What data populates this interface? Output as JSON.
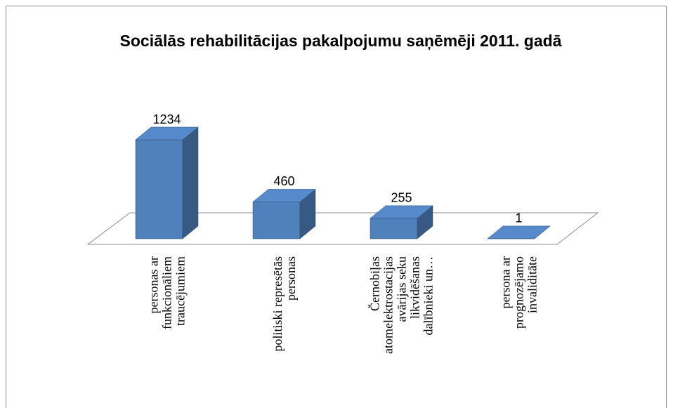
{
  "chart_data": {
    "type": "bar3d",
    "title": "Sociālās rehabilitācijas pakalpojumu saņēmēji 2011. gadā",
    "categories": [
      "personas ar funkcionāliem traucējumiem",
      "politiski represētās personas",
      "Černobiļas atomelektrostacijas avārijas seku likvidēšanas dalībnieki un…",
      "persona ar prognozējamo invaliditāte"
    ],
    "values": [
      1234,
      460,
      255,
      1
    ],
    "color": "#4f81bd"
  }
}
